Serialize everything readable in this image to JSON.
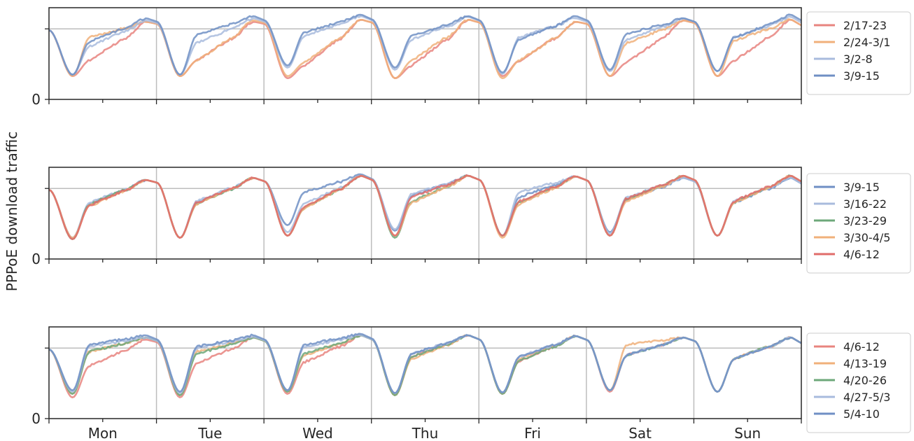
{
  "chart_data": [
    {
      "type": "line",
      "ylabel": "PPPoE download traffic",
      "ytick_labels": [
        "0"
      ],
      "xtick_labels": [],
      "grid": "vertical at day boundaries, horizontal reference line",
      "legend": {
        "placement": "right",
        "entries": [
          {
            "name": "2/17-23",
            "color": "#e8847f"
          },
          {
            "name": "2/24-3/1",
            "color": "#f0b07a"
          },
          {
            "name": "3/2-8",
            "color": "#a8bbdd"
          },
          {
            "name": "3/9-15",
            "color": "#6f8fc4"
          }
        ]
      },
      "series": [
        {
          "name": "2/17-23",
          "color": "#e8847f",
          "morning": [
            0.55,
            0.55,
            0.48,
            0.48,
            0.55,
            0.52,
            0.55
          ],
          "trough": [
            0.33,
            0.33,
            0.3,
            0.3,
            0.33,
            0.33,
            0.33
          ],
          "peak": [
            1.1,
            1.1,
            1.13,
            1.13,
            1.1,
            1.12,
            1.13
          ]
        },
        {
          "name": "2/24-3/1",
          "color": "#f0b07a",
          "morning": [
            0.88,
            0.55,
            0.52,
            0.55,
            0.55,
            0.8,
            0.83
          ],
          "trough": [
            0.33,
            0.33,
            0.33,
            0.3,
            0.3,
            0.33,
            0.33
          ],
          "peak": [
            1.1,
            1.12,
            1.13,
            1.13,
            1.1,
            1.12,
            1.13
          ]
        },
        {
          "name": "3/2-8",
          "color": "#a8bbdd",
          "morning": [
            0.75,
            0.8,
            0.9,
            0.85,
            0.88,
            0.85,
            0.88
          ],
          "trough": [
            0.35,
            0.35,
            0.45,
            0.42,
            0.36,
            0.4,
            0.4
          ],
          "peak": [
            1.12,
            1.15,
            1.18,
            1.17,
            1.15,
            1.15,
            1.17
          ]
        },
        {
          "name": "3/9-15",
          "color": "#6f8fc4",
          "morning": [
            0.82,
            0.92,
            0.95,
            0.9,
            0.85,
            0.93,
            0.88
          ],
          "trough": [
            0.35,
            0.35,
            0.48,
            0.45,
            0.38,
            0.42,
            0.4
          ],
          "peak": [
            1.15,
            1.18,
            1.2,
            1.18,
            1.18,
            1.15,
            1.2
          ]
        }
      ]
    },
    {
      "type": "line",
      "ylabel": "PPPoE download traffic",
      "ytick_labels": [
        "0"
      ],
      "xtick_labels": [],
      "grid": "vertical at day boundaries, horizontal reference line",
      "legend": {
        "placement": "right",
        "entries": [
          {
            "name": "3/9-15",
            "color": "#6f8fc4"
          },
          {
            "name": "3/16-22",
            "color": "#a8bbdd"
          },
          {
            "name": "3/23-29",
            "color": "#6da87a"
          },
          {
            "name": "3/30-4/5",
            "color": "#f0b07a"
          },
          {
            "name": "4/6-12",
            "color": "#e06c6a"
          }
        ]
      },
      "series": [
        {
          "name": "3/9-15",
          "color": "#6f8fc4",
          "morning": [
            0.78,
            0.8,
            0.95,
            0.9,
            0.88,
            0.85,
            0.8
          ],
          "trough": [
            0.3,
            0.3,
            0.48,
            0.4,
            0.33,
            0.38,
            0.33
          ],
          "peak": [
            1.12,
            1.15,
            1.2,
            1.18,
            1.17,
            1.15,
            1.15
          ]
        },
        {
          "name": "3/16-22",
          "color": "#a8bbdd",
          "morning": [
            0.8,
            0.82,
            0.78,
            0.92,
            0.95,
            0.88,
            0.82
          ],
          "trough": [
            0.3,
            0.3,
            0.38,
            0.42,
            0.33,
            0.36,
            0.33
          ],
          "peak": [
            1.12,
            1.15,
            1.18,
            1.18,
            1.17,
            1.15,
            1.15
          ]
        },
        {
          "name": "3/23-29",
          "color": "#6da87a",
          "morning": [
            0.78,
            0.78,
            0.72,
            0.82,
            0.8,
            0.85,
            0.8
          ],
          "trough": [
            0.28,
            0.3,
            0.33,
            0.3,
            0.33,
            0.33,
            0.33
          ],
          "peak": [
            1.12,
            1.15,
            1.18,
            1.18,
            1.17,
            1.18,
            1.18
          ]
        },
        {
          "name": "3/30-4/5",
          "color": "#f0b07a",
          "morning": [
            0.75,
            0.78,
            0.72,
            0.8,
            0.78,
            0.82,
            0.8
          ],
          "trough": [
            0.3,
            0.3,
            0.33,
            0.33,
            0.3,
            0.33,
            0.33
          ],
          "peak": [
            1.12,
            1.15,
            1.18,
            1.18,
            1.17,
            1.18,
            1.18
          ]
        },
        {
          "name": "4/6-12",
          "color": "#e06c6a",
          "morning": [
            0.76,
            0.8,
            0.74,
            0.88,
            0.82,
            0.86,
            0.82
          ],
          "trough": [
            0.28,
            0.3,
            0.33,
            0.33,
            0.33,
            0.33,
            0.33
          ],
          "peak": [
            1.12,
            1.15,
            1.18,
            1.18,
            1.17,
            1.18,
            1.18
          ]
        }
      ]
    },
    {
      "type": "line",
      "ylabel": "PPPoE download traffic",
      "ytick_labels": [
        "0"
      ],
      "xtick_labels": [
        "Mon",
        "Tue",
        "Wed",
        "Thu",
        "Fri",
        "Sat",
        "Sun"
      ],
      "grid": "vertical at day boundaries, horizontal reference line",
      "legend": {
        "placement": "right",
        "entries": [
          {
            "name": "4/6-12",
            "color": "#e8847f"
          },
          {
            "name": "4/13-19",
            "color": "#f0b07a"
          },
          {
            "name": "4/20-26",
            "color": "#6da87a"
          },
          {
            "name": "4/27-5/3",
            "color": "#a8bbdd"
          },
          {
            "name": "5/4-10",
            "color": "#6f8fc4"
          }
        ]
      },
      "series": [
        {
          "name": "4/6-12",
          "color": "#e8847f",
          "morning": [
            0.75,
            0.78,
            0.8,
            0.88,
            0.82,
            0.9,
            0.85
          ],
          "trough": [
            0.3,
            0.3,
            0.35,
            0.33,
            0.35,
            0.38,
            0.38
          ],
          "peak": [
            1.12,
            1.15,
            1.18,
            1.18,
            1.17,
            1.15,
            1.15
          ]
        },
        {
          "name": "4/13-19",
          "color": "#f0b07a",
          "morning": [
            0.95,
            0.95,
            0.9,
            0.85,
            0.85,
            1.05,
            0.85
          ],
          "trough": [
            0.35,
            0.33,
            0.38,
            0.33,
            0.35,
            0.4,
            0.38
          ],
          "peak": [
            1.15,
            1.15,
            1.18,
            1.18,
            1.17,
            1.15,
            1.15
          ]
        },
        {
          "name": "4/20-26",
          "color": "#6da87a",
          "morning": [
            0.95,
            0.92,
            0.92,
            0.88,
            0.82,
            0.9,
            0.85
          ],
          "trough": [
            0.35,
            0.33,
            0.38,
            0.33,
            0.35,
            0.4,
            0.38
          ],
          "peak": [
            1.15,
            1.15,
            1.18,
            1.18,
            1.17,
            1.15,
            1.15
          ]
        },
        {
          "name": "4/27-5/3",
          "color": "#a8bbdd",
          "morning": [
            1.02,
            1.0,
            1.02,
            0.92,
            0.88,
            0.9,
            0.85
          ],
          "trough": [
            0.38,
            0.36,
            0.4,
            0.36,
            0.37,
            0.4,
            0.38
          ],
          "peak": [
            1.15,
            1.16,
            1.18,
            1.18,
            1.17,
            1.15,
            1.15
          ]
        },
        {
          "name": "5/4-10",
          "color": "#6f8fc4",
          "morning": [
            1.05,
            1.02,
            1.05,
            0.92,
            0.88,
            0.9,
            0.85
          ],
          "trough": [
            0.4,
            0.38,
            0.4,
            0.36,
            0.37,
            0.4,
            0.38
          ],
          "peak": [
            1.18,
            1.18,
            1.2,
            1.18,
            1.17,
            1.15,
            1.15
          ]
        }
      ]
    }
  ]
}
